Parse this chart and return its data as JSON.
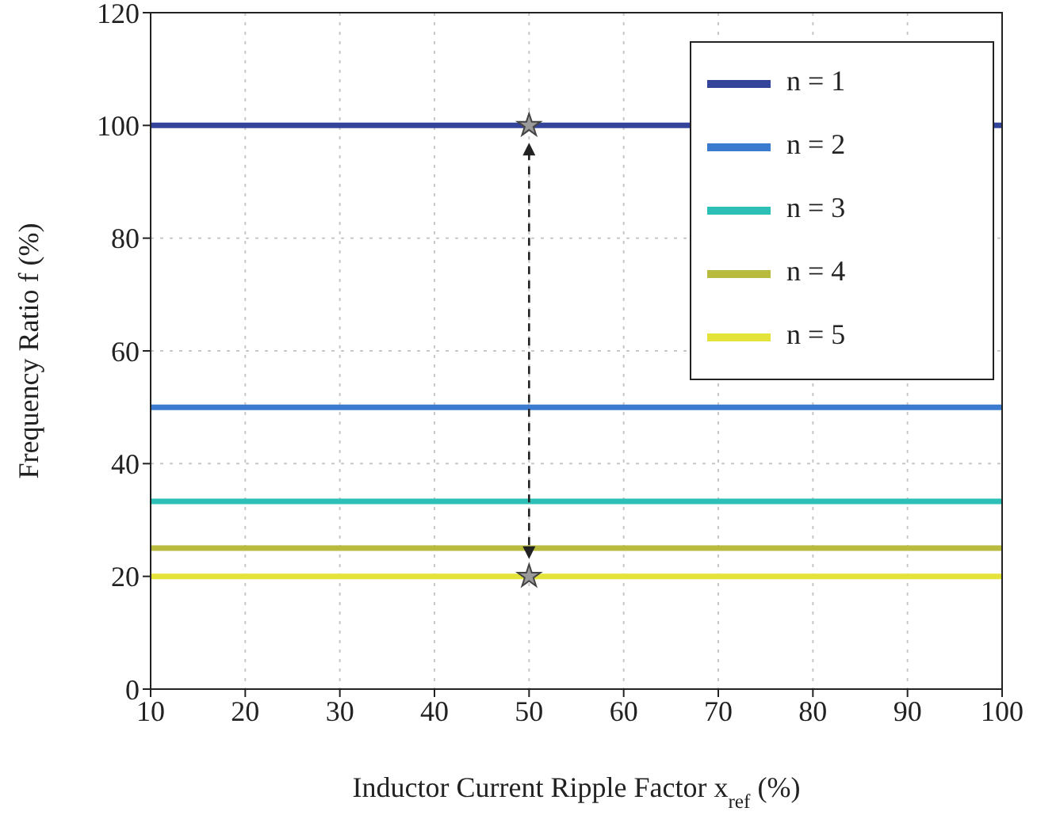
{
  "chart_data": {
    "type": "line",
    "xlabel": "Inductor Current Ripple Factor x$_{ref}$ (%)",
    "ylabel": "Frequency Ratio f (%)",
    "xlim": [
      10,
      100
    ],
    "xticks": [
      10,
      20,
      30,
      40,
      50,
      60,
      70,
      80,
      90,
      100
    ],
    "ylim": [
      0,
      120
    ],
    "yticks": [
      0,
      20,
      40,
      60,
      80,
      100,
      120
    ],
    "grid": true,
    "legend": "top right",
    "marker": "none",
    "line_style": "solid",
    "series": [
      {
        "name": "n = 1",
        "color": "#34449a",
        "x": [
          10,
          100
        ],
        "values": [
          100,
          100
        ]
      },
      {
        "name": "n = 2",
        "color": "#3a7bcf",
        "x": [
          10,
          100
        ],
        "values": [
          50,
          50
        ]
      },
      {
        "name": "n = 3",
        "color": "#2cbfb5",
        "x": [
          10,
          100
        ],
        "values": [
          33.3,
          33.3
        ]
      },
      {
        "name": "n = 4",
        "color": "#b8bb3e",
        "x": [
          10,
          100
        ],
        "values": [
          25,
          25
        ]
      },
      {
        "name": "n = 5",
        "color": "#e3e33a",
        "x": [
          10,
          100
        ],
        "values": [
          20,
          20
        ]
      },
      {
        "type": "scatter",
        "marker": "star",
        "color": "#9a9a9a",
        "x": [
          50,
          50
        ],
        "values": [
          100,
          20
        ]
      }
    ]
  }
}
